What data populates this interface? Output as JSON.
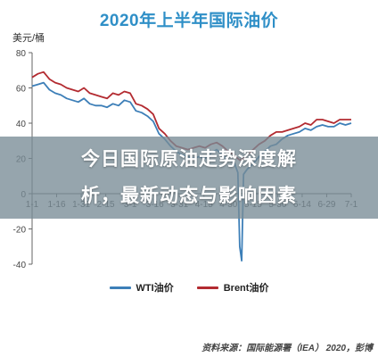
{
  "chart_data": {
    "type": "line",
    "title": "2020年上半年国际油价",
    "ylabel": "美元/桶",
    "ylim": [
      -40,
      80
    ],
    "yticks": [
      -40,
      -20,
      0,
      20,
      40,
      60,
      80
    ],
    "xticks": [
      "1-1",
      "1-16",
      "1-31",
      "2-15",
      "3-1",
      "3-16",
      "3-31",
      "4-15",
      "4-30",
      "5-15",
      "5-30",
      "6-14",
      "6-29",
      "7-1"
    ],
    "series": [
      {
        "name": "WTI油价",
        "color": "#3d7fb8",
        "points": [
          [
            0,
            61
          ],
          [
            3,
            62
          ],
          [
            6,
            63
          ],
          [
            9,
            59
          ],
          [
            12,
            57
          ],
          [
            15,
            56
          ],
          [
            18,
            54
          ],
          [
            21,
            53
          ],
          [
            24,
            52
          ],
          [
            27,
            54
          ],
          [
            30,
            51
          ],
          [
            33,
            50
          ],
          [
            36,
            50
          ],
          [
            39,
            49
          ],
          [
            42,
            51
          ],
          [
            45,
            50
          ],
          [
            48,
            53
          ],
          [
            51,
            52
          ],
          [
            54,
            47
          ],
          [
            57,
            46
          ],
          [
            60,
            44
          ],
          [
            63,
            41
          ],
          [
            66,
            34
          ],
          [
            69,
            31
          ],
          [
            72,
            27
          ],
          [
            75,
            24
          ],
          [
            78,
            22
          ],
          [
            81,
            21
          ],
          [
            84,
            20
          ],
          [
            87,
            21
          ],
          [
            90,
            20
          ],
          [
            93,
            23
          ],
          [
            96,
            25
          ],
          [
            99,
            22
          ],
          [
            102,
            19
          ],
          [
            105,
            18
          ],
          [
            107,
            12
          ],
          [
            108,
            -30
          ],
          [
            109,
            -38
          ],
          [
            110,
            11
          ],
          [
            112,
            14
          ],
          [
            115,
            17
          ],
          [
            118,
            21
          ],
          [
            121,
            24
          ],
          [
            124,
            27
          ],
          [
            127,
            28
          ],
          [
            130,
            31
          ],
          [
            133,
            33
          ],
          [
            136,
            34
          ],
          [
            139,
            35
          ],
          [
            142,
            37
          ],
          [
            145,
            36
          ],
          [
            148,
            38
          ],
          [
            151,
            39
          ],
          [
            154,
            38
          ],
          [
            157,
            38
          ],
          [
            160,
            40
          ],
          [
            163,
            39
          ],
          [
            166,
            40
          ]
        ]
      },
      {
        "name": "Brent油价",
        "color": "#b32b31",
        "points": [
          [
            0,
            66
          ],
          [
            3,
            68
          ],
          [
            6,
            69
          ],
          [
            9,
            65
          ],
          [
            12,
            63
          ],
          [
            15,
            62
          ],
          [
            18,
            60
          ],
          [
            21,
            59
          ],
          [
            24,
            58
          ],
          [
            27,
            60
          ],
          [
            30,
            57
          ],
          [
            33,
            56
          ],
          [
            36,
            55
          ],
          [
            39,
            54
          ],
          [
            42,
            57
          ],
          [
            45,
            56
          ],
          [
            48,
            58
          ],
          [
            51,
            57
          ],
          [
            54,
            51
          ],
          [
            57,
            50
          ],
          [
            60,
            48
          ],
          [
            63,
            45
          ],
          [
            66,
            37
          ],
          [
            69,
            34
          ],
          [
            72,
            30
          ],
          [
            75,
            27
          ],
          [
            78,
            26
          ],
          [
            81,
            25
          ],
          [
            84,
            26
          ],
          [
            87,
            27
          ],
          [
            90,
            26
          ],
          [
            93,
            28
          ],
          [
            96,
            29
          ],
          [
            99,
            27
          ],
          [
            102,
            24
          ],
          [
            105,
            22
          ],
          [
            108,
            19
          ],
          [
            110,
            20
          ],
          [
            112,
            22
          ],
          [
            115,
            25
          ],
          [
            118,
            28
          ],
          [
            121,
            30
          ],
          [
            124,
            33
          ],
          [
            127,
            35
          ],
          [
            130,
            35
          ],
          [
            133,
            36
          ],
          [
            136,
            37
          ],
          [
            139,
            38
          ],
          [
            142,
            40
          ],
          [
            145,
            39
          ],
          [
            148,
            42
          ],
          [
            151,
            42
          ],
          [
            154,
            41
          ],
          [
            157,
            40
          ],
          [
            160,
            42
          ],
          [
            163,
            42
          ],
          [
            166,
            42
          ]
        ]
      }
    ]
  },
  "overlay": {
    "line1": "今日国际原油走势深度解",
    "line2": "析，最新动态与影响因素"
  },
  "source": "资料来源：国际能源署（IEA） 2020，彭博"
}
